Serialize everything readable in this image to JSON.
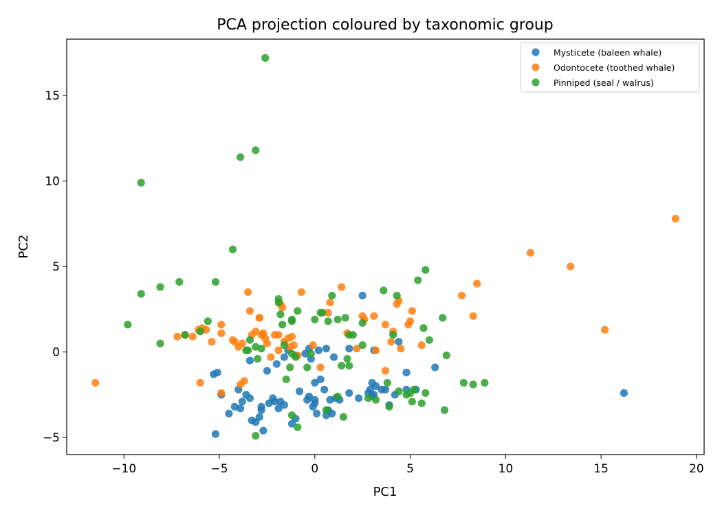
{
  "chart_data": {
    "type": "scatter",
    "title": "PCA projection coloured by taxonomic group",
    "xlabel": "PC1",
    "ylabel": "PC2",
    "xlim": [
      -13,
      20.4
    ],
    "ylim": [
      -6.0,
      18.3
    ],
    "xticks": [
      -10,
      -5,
      0,
      5,
      10,
      15,
      20
    ],
    "yticks": [
      -5,
      0,
      5,
      10,
      15
    ],
    "grid": false,
    "legend_position": "top-right",
    "series": [
      {
        "name": "Mysticete (baleen whale)",
        "color": "#1f77b4",
        "points": [
          [
            -5.2,
            -4.8
          ],
          [
            -4.5,
            -3.6
          ],
          [
            -4.2,
            -3.2
          ],
          [
            -3.9,
            -3.3
          ],
          [
            -3.8,
            -2.9
          ],
          [
            -3.6,
            -2.5
          ],
          [
            -3.4,
            -2.7
          ],
          [
            -3.3,
            -4.0
          ],
          [
            -3.1,
            -4.1
          ],
          [
            -2.9,
            -3.8
          ],
          [
            -2.8,
            -3.4
          ],
          [
            -2.8,
            -3.2
          ],
          [
            -2.7,
            -4.6
          ],
          [
            -2.4,
            -3.0
          ],
          [
            -2.2,
            -2.7
          ],
          [
            -2.1,
            -2.9
          ],
          [
            -1.9,
            -3.3
          ],
          [
            -1.8,
            -2.9
          ],
          [
            -1.6,
            -3.1
          ],
          [
            -1.2,
            -4.2
          ],
          [
            -1.0,
            -3.9
          ],
          [
            -0.8,
            -2.3
          ],
          [
            -0.4,
            -2.8
          ],
          [
            -0.3,
            -2.6
          ],
          [
            -0.1,
            -3.2
          ],
          [
            0.0,
            -3.0
          ],
          [
            0.0,
            -2.8
          ],
          [
            0.1,
            -3.6
          ],
          [
            0.3,
            -1.6
          ],
          [
            0.5,
            -2.2
          ],
          [
            0.6,
            -3.7
          ],
          [
            0.7,
            -3.4
          ],
          [
            0.8,
            -2.8
          ],
          [
            0.9,
            -3.6
          ],
          [
            1.1,
            -2.7
          ],
          [
            1.3,
            -2.8
          ],
          [
            1.8,
            -2.4
          ],
          [
            2.3,
            -2.7
          ],
          [
            2.8,
            -2.4
          ],
          [
            2.9,
            -2.2
          ],
          [
            3.0,
            -1.8
          ],
          [
            3.0,
            -2.6
          ],
          [
            3.1,
            -2.5
          ],
          [
            3.2,
            -2.0
          ],
          [
            3.5,
            -2.2
          ],
          [
            3.7,
            -2.2
          ],
          [
            3.9,
            -3.1
          ],
          [
            4.2,
            -2.5
          ],
          [
            4.8,
            -2.2
          ],
          [
            4.8,
            -1.2
          ],
          [
            5.3,
            -2.2
          ],
          [
            6.3,
            -0.9
          ],
          [
            16.2,
            -2.4
          ],
          [
            -5.3,
            -1.3
          ],
          [
            -5.1,
            -1.2
          ],
          [
            -4.9,
            -2.5
          ],
          [
            -4.0,
            -2.2
          ],
          [
            -3.4,
            -0.5
          ],
          [
            -2.5,
            -1.1
          ],
          [
            -2.0,
            -0.7
          ],
          [
            -1.6,
            -0.3
          ],
          [
            -1.4,
            0.1
          ],
          [
            -0.5,
            -0.1
          ],
          [
            -0.3,
            0.2
          ],
          [
            0.0,
            -1.8
          ],
          [
            0.2,
            0.1
          ],
          [
            0.6,
            0.2
          ],
          [
            1.0,
            -0.3
          ],
          [
            1.8,
            0.2
          ],
          [
            2.5,
            3.3
          ],
          [
            3.1,
            0.1
          ],
          [
            4.4,
            0.6
          ],
          [
            -0.2,
            -0.4
          ],
          [
            -1.0,
            -0.2
          ]
        ]
      },
      {
        "name": "Odontocete (toothed whale)",
        "color": "#ff7f0e",
        "points": [
          [
            -11.5,
            -1.8
          ],
          [
            -7.2,
            0.9
          ],
          [
            -6.8,
            1.0
          ],
          [
            -6.4,
            0.9
          ],
          [
            -6.1,
            1.3
          ],
          [
            -5.9,
            1.4
          ],
          [
            -5.7,
            1.3
          ],
          [
            -5.4,
            0.6
          ],
          [
            -4.9,
            1.6
          ],
          [
            -4.9,
            1.1
          ],
          [
            -4.3,
            0.7
          ],
          [
            -4.2,
            0.6
          ],
          [
            -4.0,
            0.3
          ],
          [
            -3.8,
            0.5
          ],
          [
            -3.5,
            3.5
          ],
          [
            -3.4,
            2.4
          ],
          [
            -3.3,
            1.0
          ],
          [
            -3.1,
            1.2
          ],
          [
            -2.9,
            2.0
          ],
          [
            -2.9,
            2.0
          ],
          [
            -2.8,
            1.0
          ],
          [
            -2.7,
            1.1
          ],
          [
            -2.6,
            0.8
          ],
          [
            -2.5,
            0.5
          ],
          [
            -2.3,
            -0.3
          ],
          [
            -2.1,
            1.0
          ],
          [
            -1.9,
            1.0
          ],
          [
            -1.8,
            2.8
          ],
          [
            -1.7,
            2.6
          ],
          [
            -1.6,
            0.6
          ],
          [
            -1.4,
            0.8
          ],
          [
            -1.3,
            0.3
          ],
          [
            -1.2,
            0.9
          ],
          [
            -1.1,
            0.4
          ],
          [
            -0.7,
            3.5
          ],
          [
            -0.1,
            0.4
          ],
          [
            0.3,
            -0.9
          ],
          [
            0.7,
            2.3
          ],
          [
            0.8,
            2.9
          ],
          [
            1.4,
            3.8
          ],
          [
            1.7,
            1.1
          ],
          [
            2.2,
            0.2
          ],
          [
            2.5,
            2.1
          ],
          [
            2.6,
            1.9
          ],
          [
            3.1,
            2.1
          ],
          [
            3.2,
            0.1
          ],
          [
            3.7,
            1.6
          ],
          [
            3.7,
            -1.1
          ],
          [
            4.0,
            0.6
          ],
          [
            4.1,
            1.2
          ],
          [
            4.3,
            2.8
          ],
          [
            4.4,
            3.0
          ],
          [
            4.5,
            0.2
          ],
          [
            4.9,
            1.6
          ],
          [
            5.0,
            1.8
          ],
          [
            5.1,
            2.4
          ],
          [
            5.6,
            0.4
          ],
          [
            7.7,
            3.3
          ],
          [
            8.3,
            2.1
          ],
          [
            8.5,
            4.0
          ],
          [
            11.3,
            5.8
          ],
          [
            13.4,
            5.0
          ],
          [
            15.2,
            1.3
          ],
          [
            18.9,
            7.8
          ],
          [
            -6.0,
            -1.8
          ],
          [
            -4.9,
            -2.4
          ],
          [
            -3.7,
            -1.7
          ],
          [
            -3.9,
            -1.9
          ],
          [
            -1.9,
            0.1
          ],
          [
            -0.9,
            -0.2
          ]
        ]
      },
      {
        "name": "Pinniped (seal / walrus)",
        "color": "#2ca02c",
        "points": [
          [
            -2.6,
            17.2
          ],
          [
            -3.1,
            11.8
          ],
          [
            -3.9,
            11.4
          ],
          [
            -9.1,
            9.9
          ],
          [
            -4.3,
            6.0
          ],
          [
            -7.1,
            4.1
          ],
          [
            -5.2,
            4.1
          ],
          [
            -8.1,
            3.8
          ],
          [
            -9.1,
            3.4
          ],
          [
            -9.8,
            1.6
          ],
          [
            -8.1,
            0.5
          ],
          [
            -6.8,
            1.0
          ],
          [
            -6.0,
            1.2
          ],
          [
            -5.6,
            1.8
          ],
          [
            -3.6,
            0.1
          ],
          [
            -3.5,
            0.1
          ],
          [
            -3.4,
            0.7
          ],
          [
            -3.1,
            0.3
          ],
          [
            -3.0,
            -0.4
          ],
          [
            -2.8,
            0.2
          ],
          [
            -1.9,
            3.1
          ],
          [
            -1.9,
            2.9
          ],
          [
            -1.8,
            2.2
          ],
          [
            -1.7,
            1.6
          ],
          [
            -1.6,
            0.4
          ],
          [
            -1.2,
            1.9
          ],
          [
            -1.2,
            1.8
          ],
          [
            -0.9,
            2.4
          ],
          [
            -1.2,
            -0.1
          ],
          [
            -1.0,
            -0.3
          ],
          [
            -1.3,
            -0.9
          ],
          [
            -1.5,
            -1.6
          ],
          [
            -0.4,
            -0.9
          ],
          [
            0.0,
            1.9
          ],
          [
            0.3,
            2.3
          ],
          [
            0.4,
            2.3
          ],
          [
            0.7,
            1.8
          ],
          [
            0.9,
            3.3
          ],
          [
            1.2,
            1.9
          ],
          [
            1.4,
            -0.8
          ],
          [
            1.6,
            2.0
          ],
          [
            1.7,
            -0.4
          ],
          [
            1.8,
            1.0
          ],
          [
            1.8,
            -0.8
          ],
          [
            2.0,
            1.0
          ],
          [
            2.5,
            1.7
          ],
          [
            2.5,
            0.4
          ],
          [
            3.6,
            3.6
          ],
          [
            3.8,
            -1.8
          ],
          [
            4.1,
            1.0
          ],
          [
            4.3,
            3.3
          ],
          [
            4.4,
            -2.3
          ],
          [
            4.8,
            -2.5
          ],
          [
            5.0,
            -2.4
          ],
          [
            5.1,
            -2.9
          ],
          [
            5.2,
            -2.2
          ],
          [
            5.4,
            4.2
          ],
          [
            5.6,
            -3.0
          ],
          [
            5.7,
            1.4
          ],
          [
            5.8,
            -2.4
          ],
          [
            5.8,
            4.8
          ],
          [
            6.0,
            0.7
          ],
          [
            6.7,
            2.0
          ],
          [
            6.8,
            -3.4
          ],
          [
            6.9,
            -0.2
          ],
          [
            7.8,
            -1.8
          ],
          [
            8.3,
            -1.9
          ],
          [
            8.9,
            -1.8
          ],
          [
            -1.2,
            -3.7
          ],
          [
            -0.9,
            -4.4
          ],
          [
            -3.1,
            -4.9
          ],
          [
            0.6,
            -3.4
          ],
          [
            1.2,
            -2.6
          ],
          [
            1.5,
            -3.8
          ],
          [
            2.8,
            -2.7
          ],
          [
            3.2,
            -2.8
          ],
          [
            3.9,
            -3.2
          ],
          [
            -0.2,
            -0.1
          ]
        ]
      }
    ]
  }
}
